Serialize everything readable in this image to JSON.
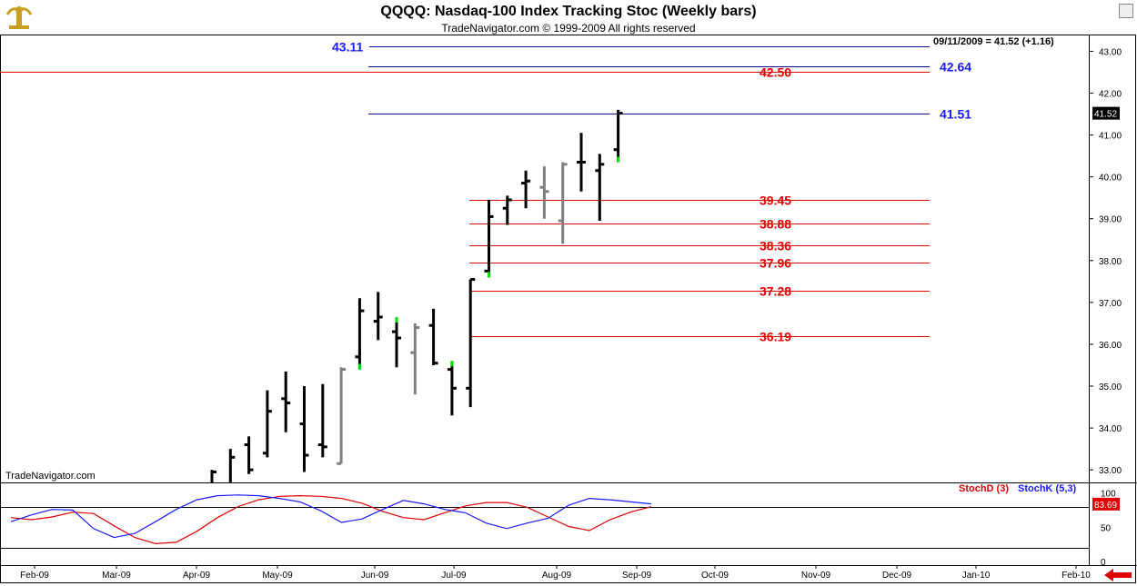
{
  "header": {
    "title": "QQQQ:  Nasdaq-100 Index Tracking Stoc  (Weekly bars)",
    "subtitle": "TradeNavigator.com © 1999-2009 All rights reserved",
    "readout": "09/11/2009 = 41.52 (+1.16)",
    "watermark": "TradeNavigator.com"
  },
  "colors": {
    "up_bar": "#000000",
    "neutral_bar": "#808080",
    "accent_green": "#00e000",
    "stochD": "#e00000",
    "stochK": "#1a1aff"
  },
  "chart_data": [
    {
      "type": "bar",
      "subtype": "ohlc",
      "ylim": [
        32.7,
        43.4
      ],
      "yticks": [
        "33.00",
        "34.00",
        "35.00",
        "36.00",
        "37.00",
        "38.00",
        "39.00",
        "40.00",
        "41.00",
        "42.00",
        "43.00"
      ],
      "x_labels": [
        "Feb-09",
        "Mar-09",
        "Apr-09",
        "May-09",
        "Jun-09",
        "Jul-09",
        "Aug-09",
        "Sep-09",
        "Oct-09",
        "Nov-09",
        "Dec-09",
        "Jan-10",
        "Feb-10"
      ],
      "last_price": "41.52",
      "series": [
        {
          "values": [
            {
              "h": 33.0,
              "l": 32.7,
              "c": 32.95,
              "color": "black"
            },
            {
              "h": 33.5,
              "l": 32.7,
              "c": 33.3,
              "color": "black"
            },
            {
              "h": 33.8,
              "l": 32.9,
              "o": 33.6,
              "c": 33.0,
              "color": "black"
            },
            {
              "h": 34.9,
              "l": 33.3,
              "o": 33.4,
              "c": 34.4,
              "color": "black"
            },
            {
              "h": 35.35,
              "l": 33.9,
              "o": 34.7,
              "c": 34.6,
              "color": "black"
            },
            {
              "h": 35.0,
              "l": 32.95,
              "o": 34.1,
              "c": 33.35,
              "color": "black"
            },
            {
              "h": 35.05,
              "l": 33.3,
              "o": 33.6,
              "c": 33.55,
              "color": "black"
            },
            {
              "h": 35.45,
              "l": 33.15,
              "o": 33.15,
              "c": 35.4,
              "color": "gray"
            },
            {
              "h": 37.1,
              "l": 35.4,
              "o": 35.7,
              "c": 36.8,
              "color": "black",
              "green_low": true
            },
            {
              "h": 37.25,
              "l": 36.1,
              "o": 36.55,
              "c": 36.65,
              "color": "black"
            },
            {
              "h": 36.65,
              "l": 35.45,
              "o": 36.3,
              "c": 36.15,
              "color": "black",
              "green_high": true
            },
            {
              "h": 36.5,
              "l": 34.8,
              "o": 35.8,
              "c": 36.4,
              "color": "gray"
            },
            {
              "h": 36.85,
              "l": 35.5,
              "o": 36.45,
              "c": 35.55,
              "color": "black"
            },
            {
              "h": 35.6,
              "l": 34.3,
              "o": 35.4,
              "c": 34.95,
              "color": "black",
              "green_high": true
            },
            {
              "h": 37.55,
              "l": 34.5,
              "o": 34.95,
              "c": 37.55,
              "color": "black"
            },
            {
              "h": 39.45,
              "l": 37.6,
              "o": 37.75,
              "c": 39.05,
              "color": "black",
              "green_low": true
            },
            {
              "h": 39.55,
              "l": 38.85,
              "o": 39.25,
              "c": 39.45,
              "color": "black"
            },
            {
              "h": 40.15,
              "l": 39.25,
              "o": 39.85,
              "c": 39.9,
              "color": "black"
            },
            {
              "h": 40.25,
              "l": 39.0,
              "o": 39.75,
              "c": 39.65,
              "color": "gray"
            },
            {
              "h": 40.35,
              "l": 38.4,
              "o": 38.95,
              "c": 40.3,
              "color": "gray"
            },
            {
              "h": 41.05,
              "l": 39.65,
              "o": 40.35,
              "c": 40.35,
              "color": "black"
            },
            {
              "h": 40.55,
              "l": 38.95,
              "o": 40.15,
              "c": 40.3,
              "color": "black"
            },
            {
              "h": 41.6,
              "l": 40.35,
              "o": 40.65,
              "c": 41.52,
              "color": "black",
              "green_low": true
            }
          ]
        }
      ],
      "levels_blue": [
        {
          "value": 43.11,
          "label": "43.11"
        },
        {
          "value": 42.64,
          "label": "42.64"
        },
        {
          "value": 41.51,
          "label": "41.51"
        }
      ],
      "levels_red": [
        {
          "value": 42.5,
          "label": "42.50"
        },
        {
          "value": 39.45,
          "label": "39.45"
        },
        {
          "value": 38.88,
          "label": "38.88"
        },
        {
          "value": 38.36,
          "label": "38.36"
        },
        {
          "value": 37.96,
          "label": "37.96"
        },
        {
          "value": 37.28,
          "label": "37.28"
        },
        {
          "value": 36.19,
          "label": "36.19"
        }
      ]
    },
    {
      "type": "line",
      "ylim": [
        0,
        110
      ],
      "yticks": [
        "0",
        "50",
        "100"
      ],
      "hlines": [
        20,
        80
      ],
      "last_value": "83.69",
      "x": [
        0,
        1,
        2,
        3,
        4,
        5,
        6,
        7,
        8,
        9,
        10,
        11,
        12,
        13,
        14,
        15,
        16,
        17,
        18,
        19,
        20,
        21,
        22,
        23,
        24,
        25,
        26,
        27,
        28,
        29,
        30,
        31
      ],
      "series": [
        {
          "name": "StochD (3)",
          "color": "#e00000",
          "values": [
            64,
            61,
            65,
            72,
            70,
            52,
            35,
            26,
            28,
            44,
            64,
            80,
            90,
            95,
            96,
            95,
            92,
            85,
            73,
            64,
            61,
            71,
            81,
            86,
            86,
            79,
            65,
            51,
            45,
            61,
            72,
            80
          ]
        },
        {
          "name": "StochK (5,3)",
          "color": "#1a1aff",
          "values": [
            58,
            68,
            76,
            75,
            48,
            35,
            41,
            58,
            76,
            90,
            96,
            97,
            96,
            92,
            87,
            74,
            57,
            62,
            76,
            89,
            84,
            76,
            71,
            56,
            48,
            56,
            63,
            82,
            92,
            90,
            87,
            84
          ]
        }
      ]
    }
  ]
}
